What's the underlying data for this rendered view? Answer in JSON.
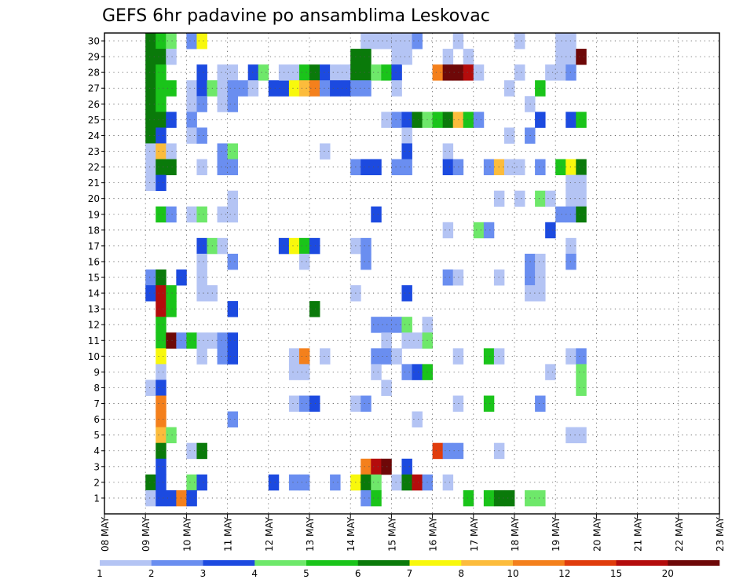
{
  "chart_data": {
    "type": "heatmap",
    "title": "GEFS 6hr padavine po ansamblima Leskovac",
    "xlabel": "",
    "ylabel": "",
    "x_tick_labels": [
      "08 MAY",
      "09 MAY",
      "10 MAY",
      "11 MAY",
      "12 MAY",
      "13 MAY",
      "14 MAY",
      "15 MAY",
      "16 MAY",
      "17 MAY",
      "18 MAY",
      "19 MAY",
      "20 MAY",
      "21 MAY",
      "22 MAY",
      "23 MAY"
    ],
    "y_tick_labels": [
      "1",
      "2",
      "3",
      "4",
      "5",
      "6",
      "7",
      "8",
      "9",
      "10",
      "11",
      "12",
      "13",
      "14",
      "15",
      "16",
      "17",
      "18",
      "19",
      "20",
      "21",
      "22",
      "23",
      "24",
      "25",
      "26",
      "27",
      "28",
      "29",
      "30"
    ],
    "xlim": [
      "08 MAY",
      "23 MAY"
    ],
    "ylim": [
      0,
      30
    ],
    "time_step_hours": 6,
    "y_meaning": "ensemble member",
    "grid": true,
    "colorbar": {
      "labels": [
        "1",
        "2",
        "3",
        "4",
        "5",
        "6",
        "7",
        "8",
        "10",
        "12",
        "15",
        "20"
      ],
      "colors": [
        "#b4c4f4",
        "#6a8ef0",
        "#1c4ae0",
        "#6ee86a",
        "#1ac41a",
        "#0a7a0a",
        "#f8f80c",
        "#fcbc3c",
        "#f4801c",
        "#e03c0c",
        "#b40c0c",
        "#6e0808"
      ]
    },
    "cells": [
      [
        4,
        30,
        6
      ],
      [
        4,
        29,
        6
      ],
      [
        4,
        28,
        6
      ],
      [
        4,
        27,
        6
      ],
      [
        4,
        26,
        6
      ],
      [
        4,
        25,
        6
      ],
      [
        4,
        24,
        6
      ],
      [
        4,
        23,
        1
      ],
      [
        4,
        22,
        1
      ],
      [
        4,
        21,
        1
      ],
      [
        4,
        15,
        2
      ],
      [
        4,
        14,
        3
      ],
      [
        4,
        8,
        1
      ],
      [
        4,
        2,
        6
      ],
      [
        4,
        1,
        1
      ],
      [
        5,
        30,
        5
      ],
      [
        5,
        29,
        6
      ],
      [
        5,
        28,
        5
      ],
      [
        5,
        27,
        5
      ],
      [
        5,
        26,
        5
      ],
      [
        5,
        25,
        6
      ],
      [
        5,
        24,
        3
      ],
      [
        5,
        23,
        8
      ],
      [
        5,
        22,
        6
      ],
      [
        5,
        21,
        3
      ],
      [
        5,
        19,
        5
      ],
      [
        5,
        15,
        6
      ],
      [
        5,
        14,
        11
      ],
      [
        5,
        13,
        11
      ],
      [
        5,
        12,
        5
      ],
      [
        5,
        11,
        5
      ],
      [
        5,
        10,
        7
      ],
      [
        5,
        9,
        1
      ],
      [
        5,
        8,
        3
      ],
      [
        5,
        7,
        9
      ],
      [
        5,
        6,
        9
      ],
      [
        5,
        5,
        8
      ],
      [
        5,
        4,
        6
      ],
      [
        5,
        3,
        3
      ],
      [
        5,
        2,
        3
      ],
      [
        5,
        1,
        3
      ],
      [
        6,
        30,
        4
      ],
      [
        6,
        29,
        1
      ],
      [
        6,
        27,
        5
      ],
      [
        6,
        25,
        3
      ],
      [
        6,
        23,
        1
      ],
      [
        6,
        22,
        6
      ],
      [
        6,
        19,
        2
      ],
      [
        6,
        14,
        5
      ],
      [
        6,
        13,
        5
      ],
      [
        6,
        11,
        12
      ],
      [
        6,
        5,
        4
      ],
      [
        6,
        1,
        3
      ],
      [
        7,
        15,
        3
      ],
      [
        7,
        11,
        2
      ],
      [
        7,
        1,
        9
      ],
      [
        8,
        30,
        2
      ],
      [
        8,
        27,
        1
      ],
      [
        8,
        26,
        1
      ],
      [
        8,
        25,
        2
      ],
      [
        8,
        24,
        1
      ],
      [
        8,
        19,
        1
      ],
      [
        8,
        11,
        5
      ],
      [
        8,
        4,
        1
      ],
      [
        8,
        2,
        4
      ],
      [
        8,
        1,
        3
      ],
      [
        9,
        30,
        7
      ],
      [
        9,
        28,
        3
      ],
      [
        9,
        27,
        3
      ],
      [
        9,
        26,
        2
      ],
      [
        9,
        24,
        2
      ],
      [
        9,
        22,
        1
      ],
      [
        9,
        19,
        4
      ],
      [
        9,
        17,
        3
      ],
      [
        9,
        16,
        1
      ],
      [
        9,
        15,
        1
      ],
      [
        9,
        14,
        1
      ],
      [
        9,
        11,
        1
      ],
      [
        9,
        10,
        1
      ],
      [
        9,
        4,
        6
      ],
      [
        9,
        2,
        3
      ],
      [
        10,
        27,
        4
      ],
      [
        10,
        17,
        4
      ],
      [
        10,
        14,
        1
      ],
      [
        10,
        11,
        1
      ],
      [
        11,
        28,
        1
      ],
      [
        11,
        27,
        1
      ],
      [
        11,
        26,
        1
      ],
      [
        11,
        23,
        2
      ],
      [
        11,
        22,
        2
      ],
      [
        11,
        19,
        1
      ],
      [
        11,
        17,
        1
      ],
      [
        11,
        11,
        2
      ],
      [
        11,
        10,
        2
      ],
      [
        12,
        28,
        1
      ],
      [
        12,
        27,
        2
      ],
      [
        12,
        26,
        2
      ],
      [
        12,
        23,
        4
      ],
      [
        12,
        22,
        2
      ],
      [
        12,
        20,
        1
      ],
      [
        12,
        19,
        1
      ],
      [
        12,
        16,
        2
      ],
      [
        12,
        13,
        3
      ],
      [
        12,
        11,
        3
      ],
      [
        12,
        10,
        3
      ],
      [
        12,
        6,
        2
      ],
      [
        13,
        27,
        2
      ],
      [
        14,
        28,
        3
      ],
      [
        14,
        27,
        1
      ],
      [
        15,
        28,
        4
      ],
      [
        16,
        27,
        3
      ],
      [
        16,
        2,
        3
      ],
      [
        17,
        27,
        3
      ],
      [
        17,
        28,
        1
      ],
      [
        17,
        17,
        3
      ],
      [
        18,
        28,
        1
      ],
      [
        18,
        27,
        7
      ],
      [
        18,
        17,
        7
      ],
      [
        18,
        10,
        1
      ],
      [
        18,
        9,
        1
      ],
      [
        18,
        7,
        1
      ],
      [
        18,
        2,
        2
      ],
      [
        19,
        28,
        5
      ],
      [
        19,
        27,
        8
      ],
      [
        19,
        17,
        5
      ],
      [
        19,
        16,
        1
      ],
      [
        19,
        10,
        9
      ],
      [
        19,
        9,
        1
      ],
      [
        19,
        7,
        2
      ],
      [
        19,
        2,
        2
      ],
      [
        20,
        28,
        6
      ],
      [
        20,
        27,
        9
      ],
      [
        20,
        17,
        3
      ],
      [
        20,
        13,
        6
      ],
      [
        20,
        7,
        3
      ],
      [
        21,
        28,
        3
      ],
      [
        21,
        27,
        2
      ],
      [
        21,
        23,
        1
      ],
      [
        21,
        10,
        1
      ],
      [
        22,
        28,
        1
      ],
      [
        22,
        27,
        3
      ],
      [
        22,
        2,
        2
      ],
      [
        23,
        28,
        1
      ],
      [
        23,
        27,
        3
      ],
      [
        24,
        29,
        6
      ],
      [
        24,
        28,
        6
      ],
      [
        24,
        27,
        2
      ],
      [
        24,
        22,
        2
      ],
      [
        24,
        17,
        1
      ],
      [
        24,
        14,
        1
      ],
      [
        24,
        7,
        1
      ],
      [
        24,
        2,
        7
      ],
      [
        25,
        30,
        1
      ],
      [
        25,
        29,
        6
      ],
      [
        25,
        28,
        6
      ],
      [
        25,
        27,
        2
      ],
      [
        25,
        22,
        3
      ],
      [
        25,
        17,
        2
      ],
      [
        25,
        16,
        2
      ],
      [
        25,
        7,
        2
      ],
      [
        25,
        3,
        9
      ],
      [
        25,
        2,
        6
      ],
      [
        25,
        1,
        2
      ],
      [
        26,
        30,
        1
      ],
      [
        26,
        28,
        4
      ],
      [
        26,
        22,
        3
      ],
      [
        26,
        19,
        3
      ],
      [
        26,
        12,
        2
      ],
      [
        26,
        10,
        2
      ],
      [
        26,
        9,
        1
      ],
      [
        26,
        3,
        11
      ],
      [
        26,
        2,
        4
      ],
      [
        26,
        1,
        5
      ],
      [
        27,
        30,
        1
      ],
      [
        27,
        28,
        5
      ],
      [
        27,
        25,
        1
      ],
      [
        27,
        12,
        2
      ],
      [
        27,
        11,
        1
      ],
      [
        27,
        10,
        2
      ],
      [
        27,
        8,
        1
      ],
      [
        27,
        3,
        12
      ],
      [
        28,
        30,
        1
      ],
      [
        28,
        29,
        1
      ],
      [
        28,
        28,
        3
      ],
      [
        28,
        27,
        1
      ],
      [
        28,
        25,
        2
      ],
      [
        28,
        22,
        2
      ],
      [
        28,
        12,
        2
      ],
      [
        28,
        10,
        1
      ],
      [
        28,
        2,
        1
      ],
      [
        29,
        30,
        1
      ],
      [
        29,
        29,
        1
      ],
      [
        29,
        25,
        3
      ],
      [
        29,
        24,
        1
      ],
      [
        29,
        23,
        3
      ],
      [
        29,
        22,
        2
      ],
      [
        29,
        14,
        3
      ],
      [
        29,
        12,
        4
      ],
      [
        29,
        11,
        1
      ],
      [
        29,
        9,
        2
      ],
      [
        29,
        3,
        3
      ],
      [
        29,
        2,
        6
      ],
      [
        30,
        30,
        2
      ],
      [
        30,
        25,
        6
      ],
      [
        30,
        11,
        1
      ],
      [
        30,
        9,
        3
      ],
      [
        30,
        6,
        1
      ],
      [
        30,
        2,
        11
      ],
      [
        31,
        25,
        4
      ],
      [
        31,
        12,
        1
      ],
      [
        31,
        11,
        4
      ],
      [
        31,
        9,
        5
      ],
      [
        31,
        2,
        2
      ],
      [
        32,
        28,
        9
      ],
      [
        32,
        25,
        5
      ],
      [
        32,
        4,
        10
      ],
      [
        33,
        29,
        1
      ],
      [
        33,
        28,
        12
      ],
      [
        33,
        25,
        6
      ],
      [
        33,
        23,
        1
      ],
      [
        33,
        22,
        3
      ],
      [
        33,
        18,
        1
      ],
      [
        33,
        15,
        2
      ],
      [
        33,
        4,
        2
      ],
      [
        33,
        2,
        1
      ],
      [
        34,
        30,
        1
      ],
      [
        34,
        28,
        12
      ],
      [
        34,
        25,
        8
      ],
      [
        34,
        22,
        2
      ],
      [
        34,
        15,
        1
      ],
      [
        34,
        10,
        1
      ],
      [
        34,
        7,
        1
      ],
      [
        34,
        4,
        2
      ],
      [
        35,
        29,
        1
      ],
      [
        35,
        28,
        11
      ],
      [
        35,
        25,
        5
      ],
      [
        35,
        1,
        5
      ],
      [
        36,
        28,
        1
      ],
      [
        36,
        25,
        2
      ],
      [
        36,
        18,
        4
      ],
      [
        37,
        22,
        2
      ],
      [
        37,
        18,
        2
      ],
      [
        37,
        10,
        5
      ],
      [
        37,
        7,
        5
      ],
      [
        37,
        1,
        5
      ],
      [
        38,
        22,
        8
      ],
      [
        38,
        20,
        1
      ],
      [
        38,
        15,
        1
      ],
      [
        38,
        10,
        1
      ],
      [
        38,
        4,
        1
      ],
      [
        38,
        1,
        6
      ],
      [
        39,
        27,
        1
      ],
      [
        39,
        24,
        1
      ],
      [
        39,
        22,
        1
      ],
      [
        39,
        1,
        6
      ],
      [
        40,
        30,
        1
      ],
      [
        40,
        28,
        1
      ],
      [
        40,
        22,
        1
      ],
      [
        40,
        20,
        1
      ],
      [
        41,
        26,
        1
      ],
      [
        41,
        24,
        2
      ],
      [
        41,
        16,
        2
      ],
      [
        41,
        15,
        2
      ],
      [
        41,
        14,
        1
      ],
      [
        41,
        1,
        4
      ],
      [
        42,
        27,
        5
      ],
      [
        42,
        25,
        3
      ],
      [
        42,
        22,
        2
      ],
      [
        42,
        20,
        4
      ],
      [
        42,
        16,
        1
      ],
      [
        42,
        15,
        1
      ],
      [
        42,
        14,
        1
      ],
      [
        42,
        7,
        2
      ],
      [
        42,
        1,
        4
      ],
      [
        43,
        28,
        1
      ],
      [
        43,
        20,
        1
      ],
      [
        43,
        18,
        3
      ],
      [
        43,
        9,
        1
      ],
      [
        44,
        30,
        1
      ],
      [
        44,
        29,
        1
      ],
      [
        44,
        28,
        1
      ],
      [
        44,
        22,
        5
      ],
      [
        44,
        19,
        2
      ],
      [
        45,
        30,
        1
      ],
      [
        45,
        29,
        1
      ],
      [
        45,
        28,
        2
      ],
      [
        45,
        25,
        3
      ],
      [
        45,
        22,
        7
      ],
      [
        45,
        21,
        1
      ],
      [
        45,
        20,
        1
      ],
      [
        45,
        19,
        2
      ],
      [
        45,
        17,
        1
      ],
      [
        45,
        16,
        2
      ],
      [
        45,
        10,
        1
      ],
      [
        45,
        5,
        1
      ],
      [
        46,
        29,
        12
      ],
      [
        46,
        25,
        5
      ],
      [
        46,
        22,
        6
      ],
      [
        46,
        21,
        1
      ],
      [
        46,
        20,
        1
      ],
      [
        46,
        19,
        6
      ],
      [
        46,
        10,
        2
      ],
      [
        46,
        9,
        4
      ],
      [
        46,
        8,
        4
      ],
      [
        46,
        5,
        1
      ]
    ]
  }
}
